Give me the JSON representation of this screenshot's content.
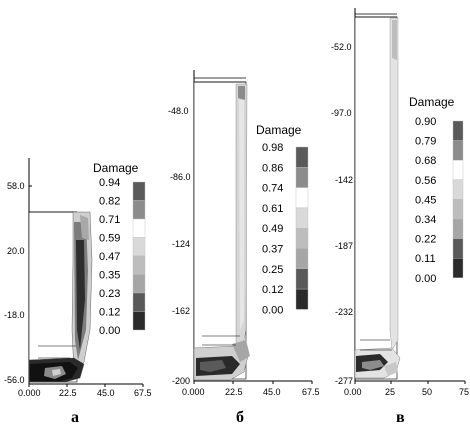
{
  "figure": {
    "panels": [
      {
        "letter": "а",
        "y_ticks": [
          "58.0",
          "20.0",
          "-18.0",
          "-56.0"
        ],
        "x_ticks": [
          "0.000",
          "22.5",
          "45.0",
          "67.5"
        ],
        "legend": {
          "title": "Damage",
          "values": [
            "0.94",
            "0.82",
            "0.71",
            "0.59",
            "0.47",
            "0.35",
            "0.23",
            "0.12",
            "0.00"
          ]
        }
      },
      {
        "letter": "б",
        "y_ticks": [
          "-48.0",
          "-86.0",
          "-124",
          "-162",
          "-200"
        ],
        "x_ticks": [
          "0.000",
          "22.5",
          "45.0",
          "67.5"
        ],
        "legend": {
          "title": "Damage",
          "values": [
            "0.98",
            "0.86",
            "0.74",
            "0.61",
            "0.49",
            "0.37",
            "0.25",
            "0.12",
            "0.00"
          ]
        }
      },
      {
        "letter": "в",
        "y_ticks": [
          "-52.0",
          "-97.0",
          "-142",
          "-187",
          "-232",
          "-277"
        ],
        "x_ticks": [
          "0.00",
          "25",
          "50",
          "75"
        ],
        "legend": {
          "title": "Damage",
          "values": [
            "0.90",
            "0.79",
            "0.68",
            "0.56",
            "0.45",
            "0.34",
            "0.22",
            "0.11",
            "0.00"
          ]
        }
      }
    ],
    "colors": {
      "legend_scale": [
        "#5a5a5a",
        "#8c8c8c",
        "#ffffff",
        "#d9d9d9",
        "#bdbdbd",
        "#a6a6a6",
        "#595959",
        "#2b2b2b",
        "#111111"
      ],
      "line": "#000000"
    }
  }
}
